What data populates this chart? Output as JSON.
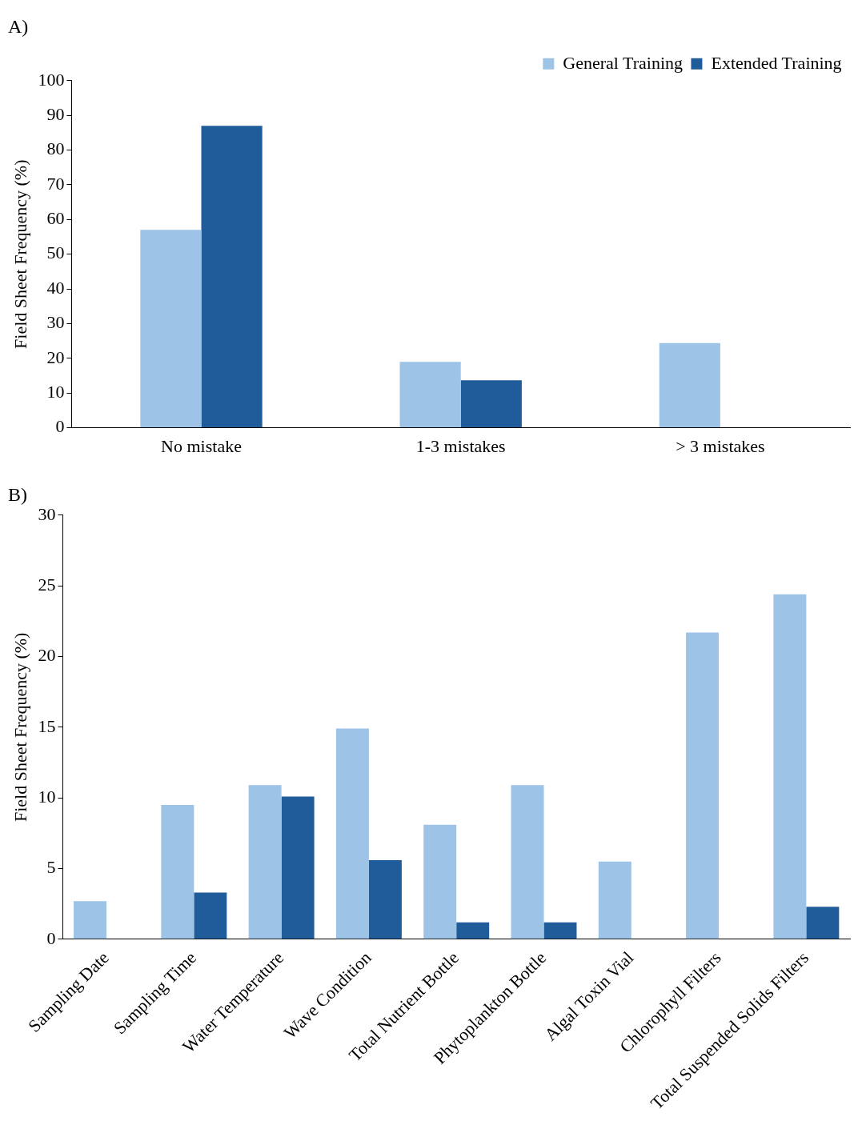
{
  "chart_data": [
    {
      "type": "bar",
      "title": "A)",
      "ylabel": "Field Sheet Frequency (%)",
      "categories": [
        "No mistake",
        "1-3 mistakes",
        "> 3 mistakes"
      ],
      "series": [
        {
          "name": "General Training",
          "color": "#9dc3e6",
          "values": [
            57,
            19,
            24.4
          ]
        },
        {
          "name": "Extended Training",
          "color": "#1f5c99",
          "values": [
            87,
            13.7,
            null
          ]
        }
      ],
      "ylim": [
        0,
        100
      ],
      "yticks": [
        0,
        10,
        20,
        30,
        40,
        50,
        60,
        70,
        80,
        90,
        100
      ],
      "legend": "top right"
    },
    {
      "type": "bar",
      "title": "B)",
      "ylabel": "Field Sheet Frequency (%)",
      "categories": [
        "Sampling Date",
        "Sampling Time",
        "Water Temperature",
        "Wave Condition",
        "Total Nutrient Bottle",
        "Phytoplankton Bottle",
        "Algal Toxin Vial",
        "Chlorophyll Filters",
        "Total Suspended Solids Filters"
      ],
      "series": [
        {
          "color": "#9dc3e6",
          "values": [
            2.7,
            9.5,
            10.9,
            14.9,
            8.1,
            10.9,
            5.5,
            21.7,
            24.4
          ]
        },
        {
          "color": "#1f5c99",
          "values": [
            null,
            3.3,
            10.1,
            5.6,
            1.2,
            1.2,
            null,
            null,
            2.3
          ]
        }
      ],
      "ylim": [
        0,
        30
      ],
      "yticks": [
        0,
        5,
        10,
        15,
        20,
        25,
        30
      ]
    }
  ]
}
